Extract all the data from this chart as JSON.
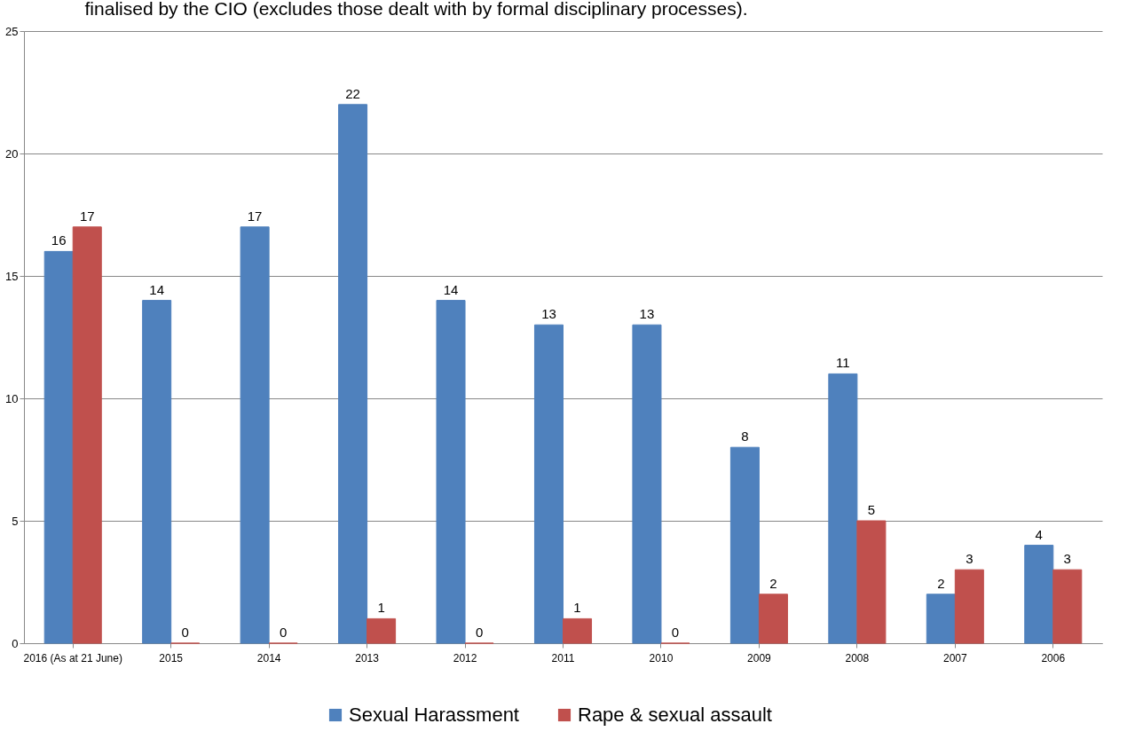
{
  "chart_data": {
    "type": "bar",
    "title": "finalised by the CIO (excludes those dealt with by formal disciplinary processes).",
    "categories": [
      "2016 (As at 21 June)",
      "2015",
      "2014",
      "2013",
      "2012",
      "2011",
      "2010",
      "2009",
      "2008",
      "2007",
      "2006"
    ],
    "series": [
      {
        "name": "Sexual Harassment",
        "color": "#4f81bd",
        "values": [
          16,
          14,
          17,
          22,
          14,
          13,
          13,
          8,
          11,
          2,
          4
        ]
      },
      {
        "name": "Rape & sexual assault",
        "color": "#c0504d",
        "values": [
          17,
          0,
          0,
          1,
          0,
          1,
          0,
          2,
          5,
          3,
          3
        ]
      }
    ],
    "ylim": [
      0,
      25
    ],
    "yticks": [
      0,
      5,
      10,
      15,
      20,
      25
    ],
    "grid": "y",
    "legend": "bottom",
    "data_labels": true
  }
}
